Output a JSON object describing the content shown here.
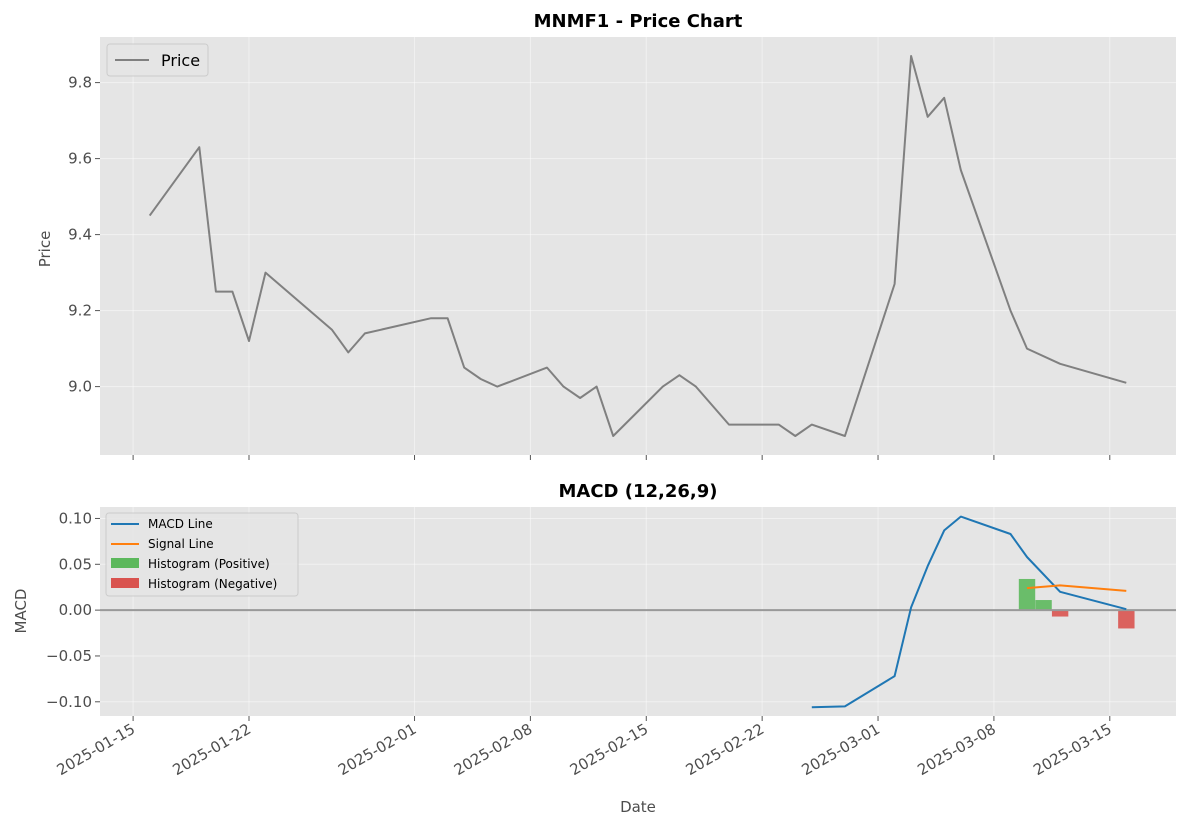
{
  "chart_data": [
    {
      "type": "line",
      "title": "MNMF1 - Price Chart",
      "xlabel": "",
      "ylabel": "Price",
      "ylim": [
        8.82,
        9.92
      ],
      "xlim": [
        "2025-01-13",
        "2025-03-19"
      ],
      "y_ticks": [
        "9.0",
        "9.2",
        "9.4",
        "9.6",
        "9.8"
      ],
      "grid": true,
      "legend_position": "top-left",
      "series": [
        {
          "name": "Price",
          "color": "#808080",
          "points": [
            [
              "2025-01-16",
              9.45
            ],
            [
              "2025-01-19",
              9.63
            ],
            [
              "2025-01-20",
              9.25
            ],
            [
              "2025-01-21",
              9.25
            ],
            [
              "2025-01-22",
              9.12
            ],
            [
              "2025-01-23",
              9.3
            ],
            [
              "2025-01-27",
              9.15
            ],
            [
              "2025-01-28",
              9.09
            ],
            [
              "2025-01-29",
              9.14
            ],
            [
              "2025-02-02",
              9.18
            ],
            [
              "2025-02-03",
              9.18
            ],
            [
              "2025-02-04",
              9.05
            ],
            [
              "2025-02-05",
              9.02
            ],
            [
              "2025-02-06",
              9.0
            ],
            [
              "2025-02-09",
              9.05
            ],
            [
              "2025-02-10",
              9.0
            ],
            [
              "2025-02-11",
              8.97
            ],
            [
              "2025-02-12",
              9.0
            ],
            [
              "2025-02-13",
              8.87
            ],
            [
              "2025-02-16",
              9.0
            ],
            [
              "2025-02-17",
              9.03
            ],
            [
              "2025-02-18",
              9.0
            ],
            [
              "2025-02-20",
              8.9
            ],
            [
              "2025-02-23",
              8.9
            ],
            [
              "2025-02-24",
              8.87
            ],
            [
              "2025-02-25",
              8.9
            ],
            [
              "2025-02-27",
              8.87
            ],
            [
              "2025-03-02",
              9.27
            ],
            [
              "2025-03-03",
              9.87
            ],
            [
              "2025-03-04",
              9.71
            ],
            [
              "2025-03-05",
              9.76
            ],
            [
              "2025-03-06",
              9.57
            ],
            [
              "2025-03-09",
              9.2
            ],
            [
              "2025-03-10",
              9.1
            ],
            [
              "2025-03-12",
              9.06
            ],
            [
              "2025-03-16",
              9.01
            ]
          ]
        }
      ]
    },
    {
      "type": "line",
      "title": "MACD (12,26,9)",
      "xlabel": "Date",
      "ylabel": "MACD",
      "ylim": [
        -0.1155,
        0.1125
      ],
      "xlim": [
        "2025-01-13",
        "2025-03-19"
      ],
      "y_ticks": [
        "−0.10",
        "−0.05",
        "0.00",
        "0.05",
        "0.10"
      ],
      "x_ticks": [
        "2025-01-15",
        "2025-01-22",
        "2025-02-01",
        "2025-02-08",
        "2025-02-15",
        "2025-02-22",
        "2025-03-01",
        "2025-03-08",
        "2025-03-15"
      ],
      "grid": true,
      "legend_position": "top-left",
      "zero_line_color": "#999999",
      "series": [
        {
          "name": "MACD Line",
          "color": "#1f77b4",
          "points": [
            [
              "2025-02-25",
              -0.106
            ],
            [
              "2025-02-27",
              -0.105
            ],
            [
              "2025-03-02",
              -0.072
            ],
            [
              "2025-03-03",
              0.003
            ],
            [
              "2025-03-04",
              0.048
            ],
            [
              "2025-03-05",
              0.087
            ],
            [
              "2025-03-06",
              0.102
            ],
            [
              "2025-03-09",
              0.083
            ],
            [
              "2025-03-10",
              0.058
            ],
            [
              "2025-03-12",
              0.02
            ],
            [
              "2025-03-16",
              0.001
            ]
          ]
        },
        {
          "name": "Signal Line",
          "color": "#ff7f0e",
          "points": [
            [
              "2025-03-10",
              0.024
            ],
            [
              "2025-03-12",
              0.027
            ],
            [
              "2025-03-16",
              0.021
            ]
          ]
        },
        {
          "name": "Histogram (Positive)",
          "color": "#5cb85c",
          "bars": [
            [
              "2025-03-10",
              0.034
            ],
            [
              "2025-03-11",
              0.011
            ]
          ]
        },
        {
          "name": "Histogram (Negative)",
          "color": "#d9534f",
          "bars": [
            [
              "2025-03-12",
              -0.007
            ],
            [
              "2025-03-16",
              -0.02
            ]
          ]
        }
      ]
    }
  ]
}
